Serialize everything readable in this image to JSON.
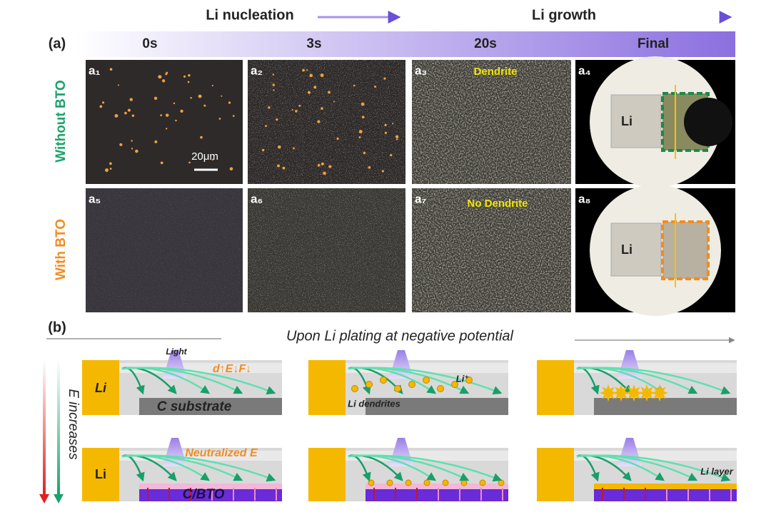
{
  "header": {
    "nucleation": "Li nucleation",
    "growth": "Li growth"
  },
  "panel_a": {
    "label": "(a)",
    "times": [
      "0s",
      "3s",
      "20s",
      "Final"
    ],
    "rows": [
      "Without BTO",
      "With BTO"
    ],
    "image_labels": [
      "a₁",
      "a₂",
      "a₃",
      "a₄",
      "a₅",
      "a₆",
      "a₇",
      "a₈"
    ],
    "scale_bar": "20μm",
    "annotations": [
      "Dendrite",
      "No Dendrite"
    ],
    "final_li": [
      "Li",
      "Li"
    ]
  },
  "panel_b": {
    "label": "(b)",
    "title": "Upon Li plating at negative potential",
    "axis": "E increases",
    "light": "Light",
    "field_note": "d↑E↓F↓",
    "li": [
      "Li",
      "Li"
    ],
    "substrates": [
      "C substrate",
      "C/BTO"
    ],
    "li_ion": "Li⁺",
    "dendrites": "Li dendrites",
    "neutralized": "Neutralized E",
    "li_layer": "Li layer"
  }
}
